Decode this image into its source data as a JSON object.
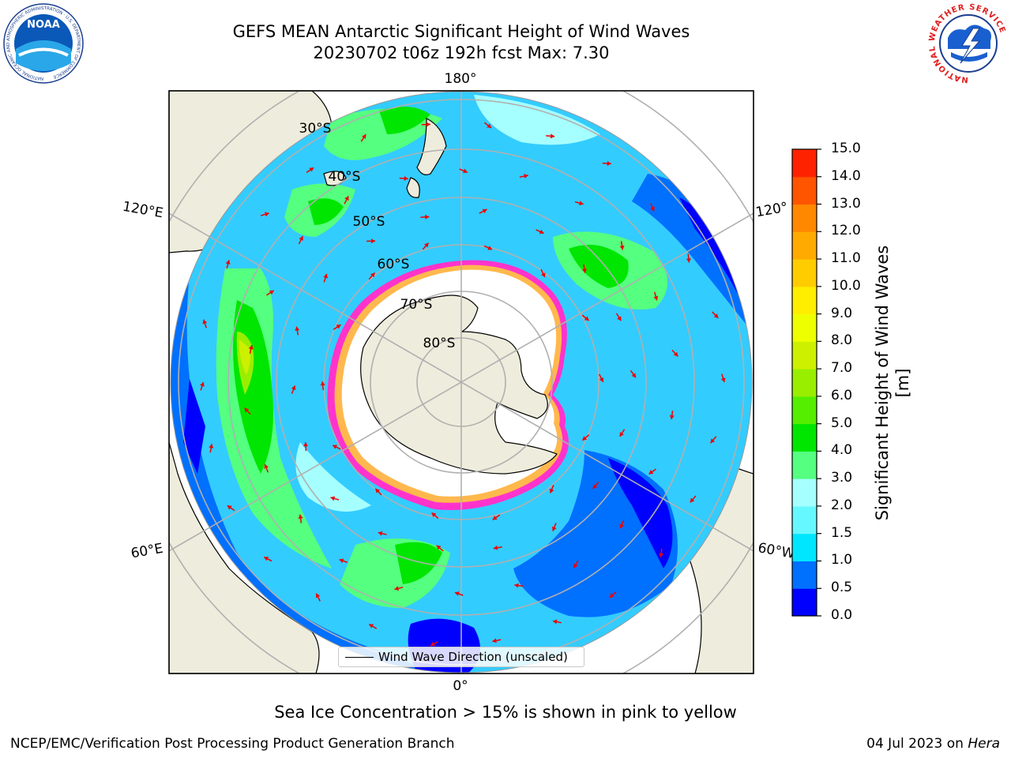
{
  "header": {
    "title": "GEFS MEAN Antarctic Significant Height of Wind Waves",
    "subtitle": "20230702 t06z 192h fcst   Max: 7.30"
  },
  "logos": {
    "left": "NOAA",
    "left_ring_text": "NATIONAL OCEANIC AND ATMOSPHERIC ADMINISTRATION · U.S. DEPARTMENT OF COMMERCE",
    "right_ring_text": "NATIONAL WEATHER SERVICE"
  },
  "map": {
    "lon_labels": {
      "top": "180°",
      "bottom": "0°",
      "left_upper": "120°E",
      "left_lower": "60°E",
      "right_upper": "120°",
      "right_lower": "60°W"
    },
    "lat_labels": [
      "30°S",
      "40°S",
      "50°S",
      "60°S",
      "70°S",
      "80°S"
    ],
    "legend_label": "Wind Wave Direction (unscaled)",
    "colors": {
      "land": "#eeecdc",
      "open_ocean": "#33ccff",
      "ice_edge": "#ff33cc",
      "arrow": "#ee0000",
      "grid": "#b0b0b0"
    }
  },
  "colorbar": {
    "label": "Significant Height of Wind Waves [m]",
    "ticks": [
      "15.0",
      "14.0",
      "13.0",
      "12.0",
      "11.0",
      "10.0",
      "9.0",
      "8.0",
      "7.0",
      "6.0",
      "5.0",
      "4.0",
      "3.0",
      "2.0",
      "1.5",
      "1.0",
      "0.5",
      "0.0"
    ],
    "colors": [
      "#0000ff",
      "#0070ff",
      "#00e6ff",
      "#66f8ff",
      "#a6ffff",
      "#55ff80",
      "#00e600",
      "#55ee00",
      "#99ee00",
      "#ccf000",
      "#eeff00",
      "#ffee00",
      "#ffcc00",
      "#ffaa00",
      "#ff8800",
      "#ff5500",
      "#ff2200"
    ]
  },
  "footer": {
    "note": "Sea Ice Concentration > 15% is shown in pink to yellow",
    "left": "NCEP/EMC/Verification Post Processing Product Generation Branch",
    "right_date": "04 Jul 2023 on",
    "right_machine": "Hera"
  }
}
